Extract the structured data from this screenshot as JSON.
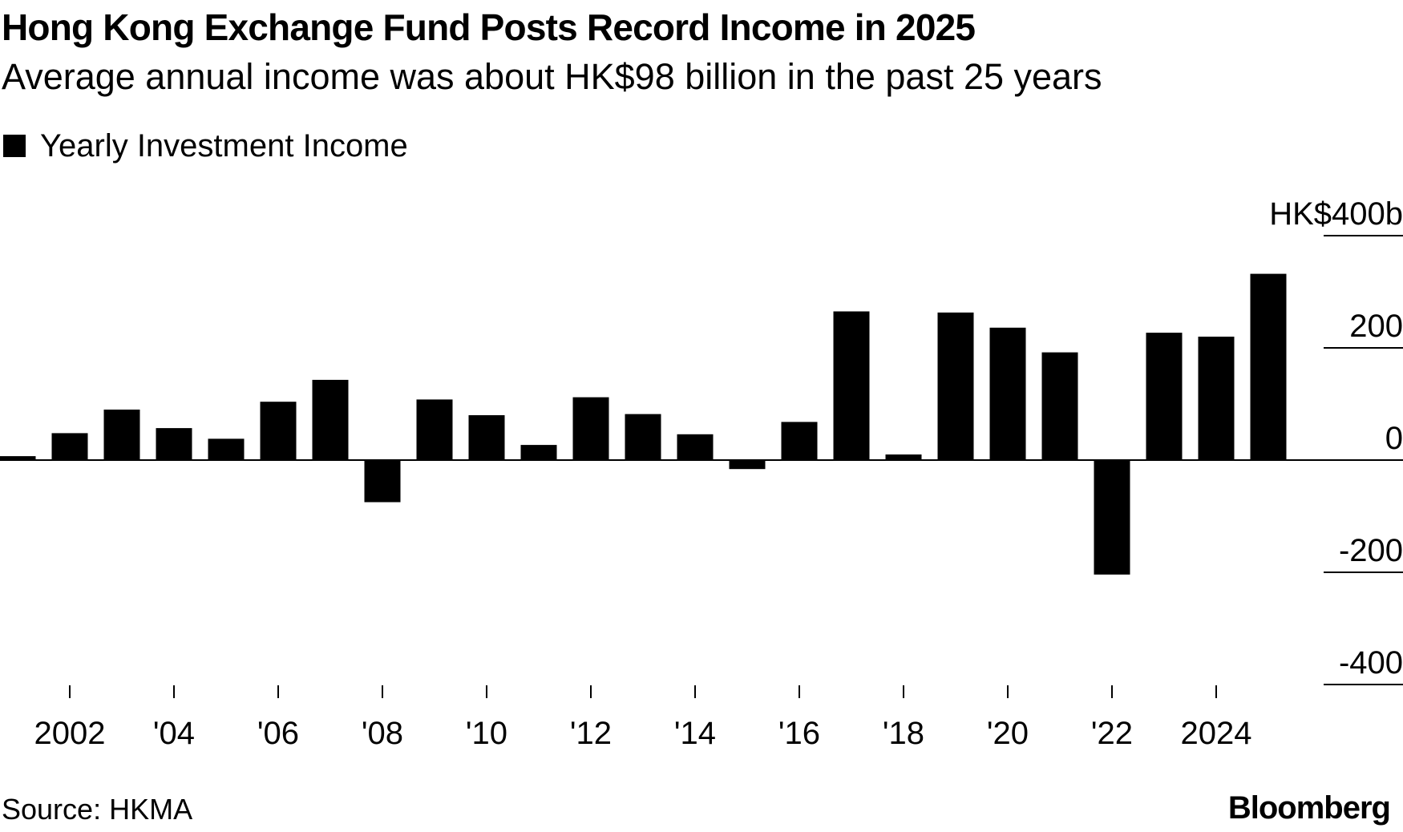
{
  "header": {
    "title": "Hong Kong Exchange Fund Posts Record Income in 2025",
    "subtitle": "Average annual income was about HK$98 billion in the past 25 years"
  },
  "legend": {
    "label": "Yearly Investment Income",
    "color": "#000000"
  },
  "footer": {
    "source": "Source: HKMA",
    "brand": "Bloomberg"
  },
  "chart_data": {
    "type": "bar",
    "title": "Hong Kong Exchange Fund Posts Record Income in 2025",
    "subtitle": "Average annual income was about HK$98 billion in the past 25 years",
    "xlabel": "",
    "ylabel": "",
    "unit_label": "HK$400b",
    "ylim": [
      -400,
      400
    ],
    "yticks": [
      400,
      200,
      0,
      -200,
      -400
    ],
    "ytick_labels": [
      "HK$400b",
      "200",
      "0",
      "-200",
      "-400"
    ],
    "categories": [
      "2001",
      "2002",
      "2003",
      "2004",
      "2005",
      "2006",
      "2007",
      "2008",
      "2009",
      "2010",
      "2011",
      "2012",
      "2013",
      "2014",
      "2015",
      "2016",
      "2017",
      "2018",
      "2019",
      "2020",
      "2021",
      "2022",
      "2023",
      "2024",
      "2025"
    ],
    "xtick_years": [
      "2002",
      "2004",
      "2006",
      "2008",
      "2010",
      "2012",
      "2014",
      "2016",
      "2018",
      "2020",
      "2022",
      "2024"
    ],
    "xtick_labels": [
      "2002",
      "'04",
      "'06",
      "'08",
      "'10",
      "'12",
      "'14",
      "'16",
      "'18",
      "'20",
      "'22",
      "2024"
    ],
    "series": [
      {
        "name": "Yearly Investment Income",
        "color": "#000000",
        "values": [
          7,
          48,
          90,
          57,
          38,
          104,
          143,
          -75,
          108,
          80,
          27,
          112,
          82,
          46,
          -16,
          68,
          265,
          10,
          263,
          236,
          192,
          -204,
          227,
          220,
          332
        ]
      }
    ],
    "legend": "top-left",
    "grid": false
  }
}
